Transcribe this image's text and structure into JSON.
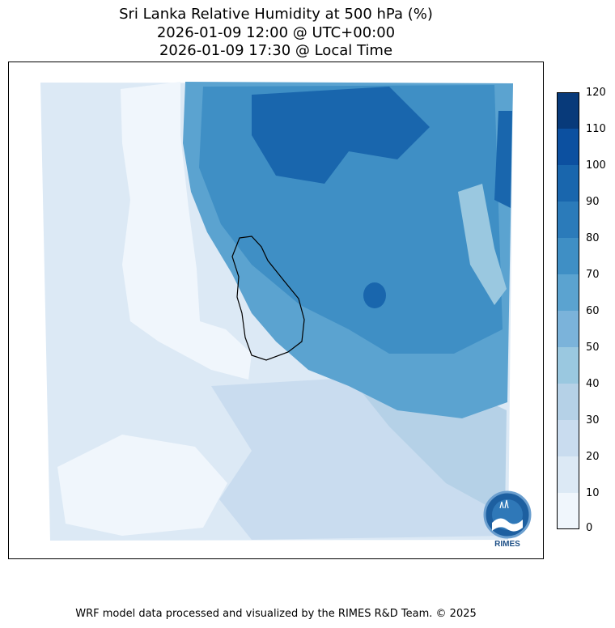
{
  "title": {
    "line1": "Sri Lanka Relative Humidity at 500 hPa (%)",
    "line2": "2026-01-09 12:00 @ UTC+00:00",
    "line3": "2026-01-09 17:30 @ Local Time"
  },
  "colorbar": {
    "ticks": [
      "0",
      "10",
      "20",
      "30",
      "40",
      "50",
      "60",
      "70",
      "80",
      "90",
      "100",
      "110",
      "120"
    ],
    "colors": [
      "#f0f6fc",
      "#dce9f5",
      "#c9dcef",
      "#b5d1e7",
      "#9ac8e0",
      "#7bb3da",
      "#5ba3d0",
      "#3f8fc5",
      "#2b7bba",
      "#1966ad",
      "#0c50a0",
      "#083a7a"
    ]
  },
  "logo": {
    "name": "rimes-logo",
    "text": "RIMES"
  },
  "footer": "WRF model data processed and visualized by the RIMES R&D Team. © 2025"
}
